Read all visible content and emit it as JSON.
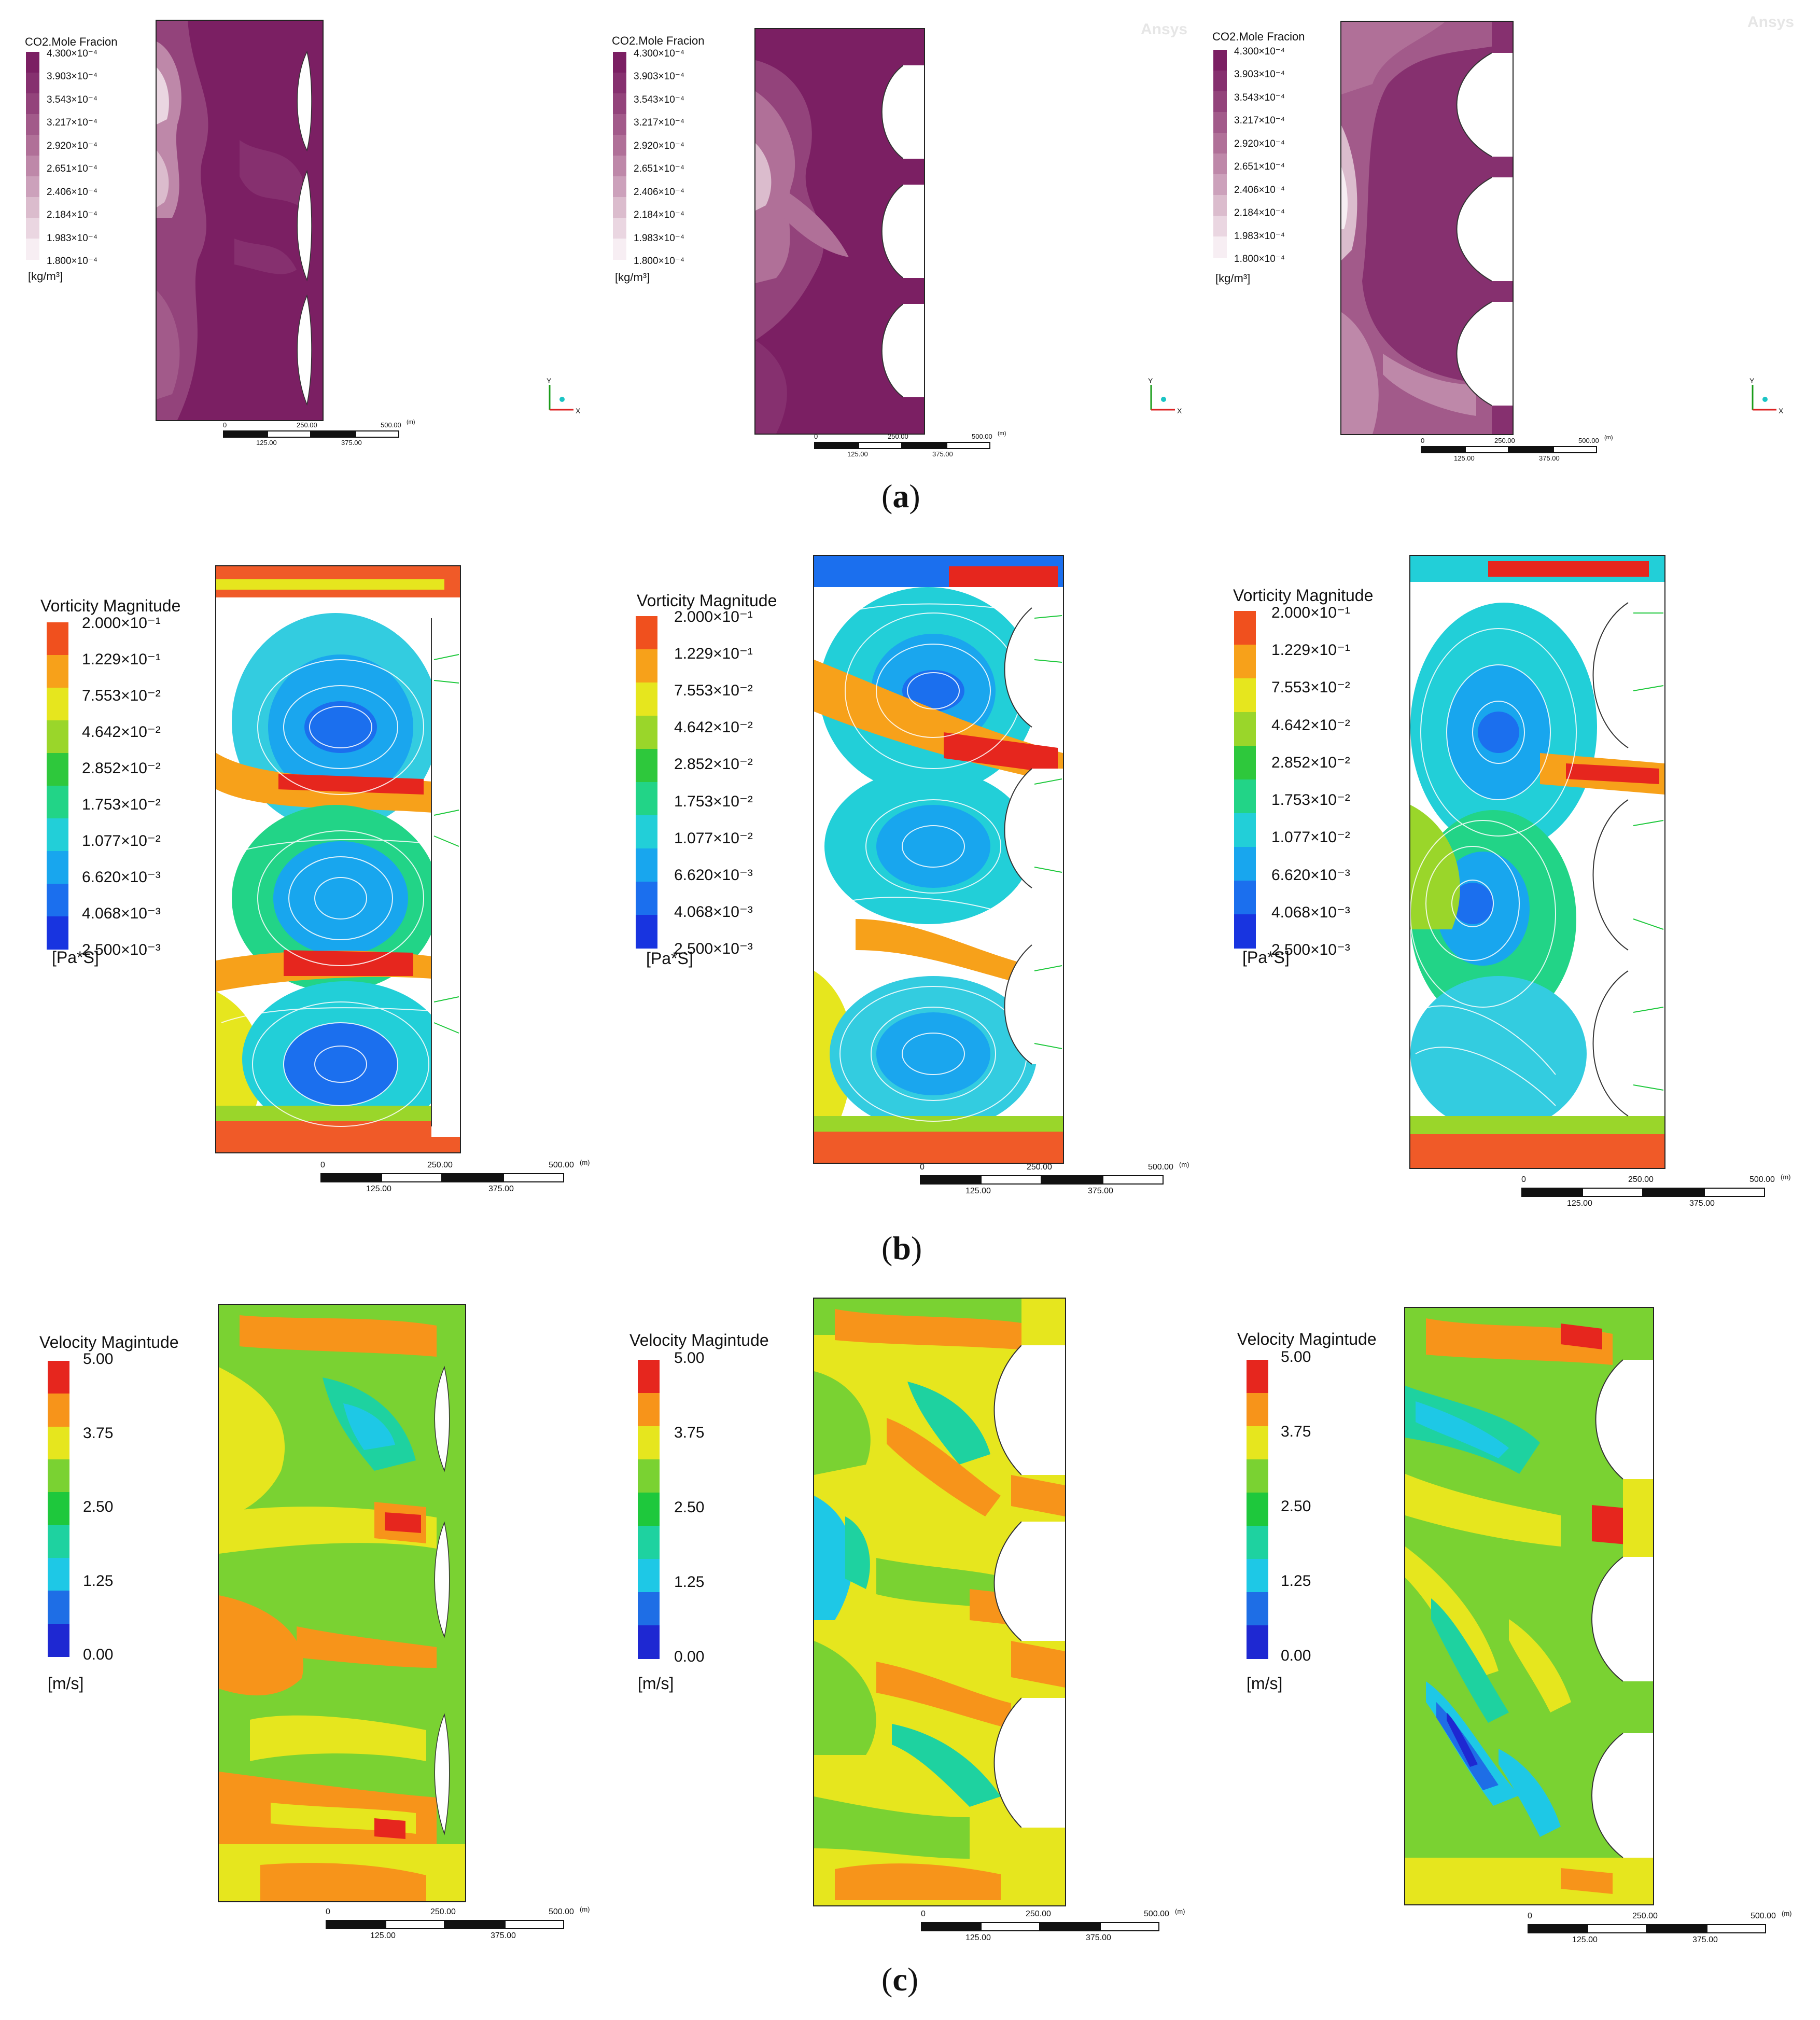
{
  "watermark": "Ansys",
  "row_a": {
    "label_letter": "a",
    "legend_title": "CO2.Mole Fracion",
    "ticks": [
      "4.300×10⁻⁴",
      "3.903×10⁻⁴",
      "3.543×10⁻⁴",
      "3.217×10⁻⁴",
      "2.920×10⁻⁴",
      "2.651×10⁻⁴",
      "2.406×10⁻⁴",
      "2.184×10⁻⁴",
      "1.983×10⁻⁴",
      "1.800×10⁻⁴"
    ],
    "unit": "[kg/m³]",
    "colors": [
      "#7b1f63",
      "#86306f",
      "#93437b",
      "#a25a8a",
      "#b07098",
      "#be88a9",
      "#cca1bb",
      "#dbbccd",
      "#ead6e1",
      "#f7eef3"
    ]
  },
  "row_b": {
    "label_letter": "b",
    "legend_title": "Vorticity Magnitude",
    "ticks": [
      "2.000×10⁻¹",
      "1.229×10⁻¹",
      "7.553×10⁻²",
      "4.642×10⁻²",
      "2.852×10⁻²",
      "1.753×10⁻²",
      "1.077×10⁻²",
      "6.620×10⁻³",
      "4.068×10⁻³",
      "2.500×10⁻³"
    ],
    "unit": "[Pa*S]",
    "colors": [
      "#f0501e",
      "#f7a11a",
      "#e6e61e",
      "#9ad62a",
      "#2ec83c",
      "#22d487",
      "#22cfd8",
      "#18a6ee",
      "#1b6fee",
      "#1834e0"
    ]
  },
  "row_c": {
    "label_letter": "c",
    "legend_title": "Velocity Magintude",
    "ticks": [
      "5.00",
      "3.75",
      "2.50",
      "1.25",
      "0.00"
    ],
    "unit": "[m/s]",
    "colors": [
      "#e6261e",
      "#f7941a",
      "#e6e61e",
      "#7ad232",
      "#1ec83c",
      "#1ed2a0",
      "#1ec8e6",
      "#1e6ee6",
      "#1e28d2"
    ]
  },
  "scalebar": {
    "top_labels": [
      "0",
      "250.00",
      "500.00"
    ],
    "bottom_labels": [
      "125.00",
      "375.00"
    ],
    "unit": "(m)"
  },
  "axes": {
    "y": "Y",
    "x": "X"
  }
}
